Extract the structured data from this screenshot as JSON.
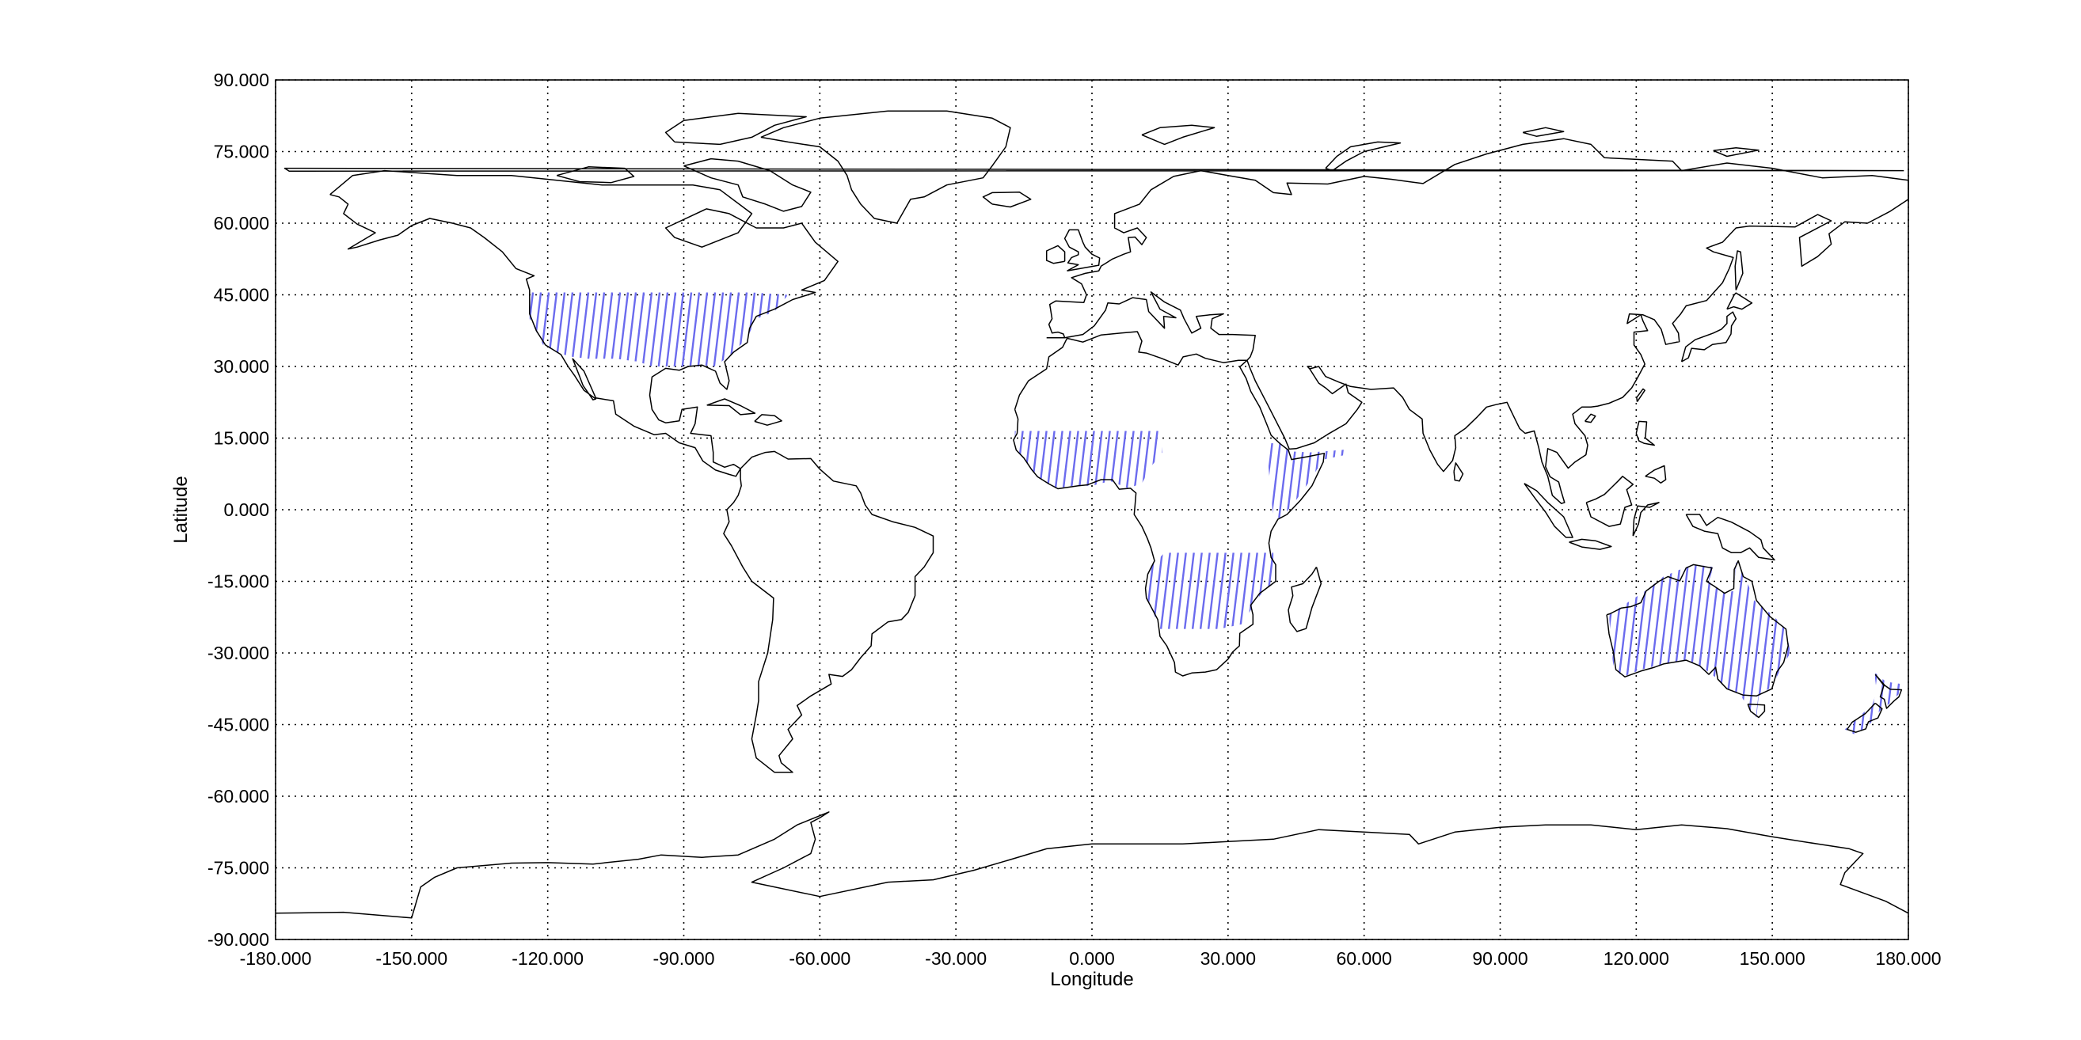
{
  "map": {
    "xlabel": "Longitude",
    "ylabel": "Latitude",
    "xlim": [
      -180,
      180
    ],
    "ylim": [
      -90,
      90
    ],
    "grid": true,
    "xticks": [
      -180,
      -150,
      -120,
      -90,
      -60,
      -30,
      0,
      30,
      60,
      90,
      120,
      150,
      180
    ],
    "yticks": [
      90,
      75,
      60,
      45,
      30,
      15,
      0,
      -15,
      -30,
      -45,
      -60,
      -75,
      -90
    ],
    "xtick_labels": [
      "-180.000",
      "-150.000",
      "-120.000",
      "-90.000",
      "-60.000",
      "-30.000",
      "0.000",
      "30.000",
      "60.000",
      "90.000",
      "120.000",
      "150.000",
      "180.000"
    ],
    "ytick_labels": [
      "90.000",
      "75.000",
      "60.000",
      "45.000",
      "30.000",
      "15.000",
      "0.000",
      "-15.000",
      "-30.000",
      "-45.000",
      "-60.000",
      "-75.000",
      "-90.000"
    ],
    "colors": {
      "coastline": "#000000",
      "highlight": "#6b6bee",
      "grid": "#000000"
    },
    "highlighted_regions": [
      {
        "id": "usa",
        "lon_range": [
          -125,
          -67
        ],
        "lat_range": [
          30,
          45.5
        ]
      },
      {
        "id": "west-africa-sahel",
        "lon_range": [
          -17,
          16
        ],
        "lat_range": [
          4,
          16.5
        ]
      },
      {
        "id": "horn-of-africa",
        "lon_range": [
          38,
          56
        ],
        "lat_range": [
          -2,
          14
        ]
      },
      {
        "id": "southern-africa",
        "lon_range": [
          12,
          40
        ],
        "lat_range": [
          -25,
          -9
        ]
      },
      {
        "id": "australia",
        "lon_range": [
          114,
          154
        ],
        "lat_range": [
          -44,
          -11
        ]
      },
      {
        "id": "new-zealand",
        "lon_range": [
          166,
          179
        ],
        "lat_range": [
          -47,
          -34
        ]
      }
    ]
  }
}
